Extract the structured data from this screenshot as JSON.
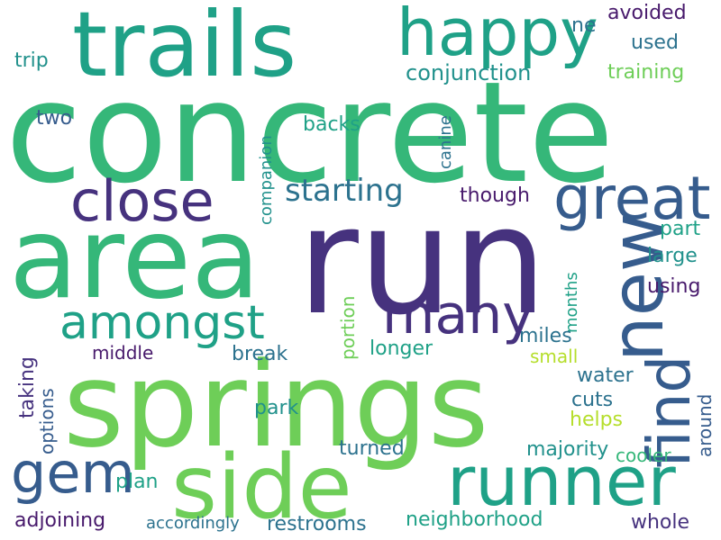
{
  "palette": {
    "indigo": "#46327e",
    "dark_purple": "#481a6c",
    "blue": "#365c8d",
    "steel": "#2c728e",
    "teal": "#21918c",
    "sea": "#1fa187",
    "green": "#35b779",
    "light_green": "#6ece58",
    "lime": "#b5de2b"
  },
  "words": [
    {
      "text": "concrete",
      "color": "green"
    },
    {
      "text": "run",
      "color": "indigo"
    },
    {
      "text": "springs",
      "color": "light_green"
    },
    {
      "text": "trails",
      "color": "sea"
    },
    {
      "text": "area",
      "color": "green"
    },
    {
      "text": "side",
      "color": "light_green"
    },
    {
      "text": "happy",
      "color": "sea"
    },
    {
      "text": "new",
      "color": "blue"
    },
    {
      "text": "runner",
      "color": "sea"
    },
    {
      "text": "close",
      "color": "indigo"
    },
    {
      "text": "great",
      "color": "blue"
    },
    {
      "text": "many",
      "color": "indigo"
    },
    {
      "text": "amongst",
      "color": "sea"
    },
    {
      "text": "find",
      "color": "blue"
    },
    {
      "text": "gem",
      "color": "blue"
    },
    {
      "text": "starting",
      "color": "steel"
    },
    {
      "text": "conjunction",
      "color": "teal"
    },
    {
      "text": "avoided",
      "color": "dark_purple"
    },
    {
      "text": "used",
      "color": "steel"
    },
    {
      "text": "ne",
      "color": "steel"
    },
    {
      "text": "trip",
      "color": "teal"
    },
    {
      "text": "two",
      "color": "blue"
    },
    {
      "text": "training",
      "color": "light_green"
    },
    {
      "text": "backs",
      "color": "sea"
    },
    {
      "text": "canine",
      "color": "steel"
    },
    {
      "text": "though",
      "color": "dark_purple"
    },
    {
      "text": "companion",
      "color": "teal"
    },
    {
      "text": "part",
      "color": "sea"
    },
    {
      "text": "large",
      "color": "teal"
    },
    {
      "text": "using",
      "color": "dark_purple"
    },
    {
      "text": "months",
      "color": "sea"
    },
    {
      "text": "portion",
      "color": "light_green"
    },
    {
      "text": "miles",
      "color": "steel"
    },
    {
      "text": "small",
      "color": "lime"
    },
    {
      "text": "middle",
      "color": "dark_purple"
    },
    {
      "text": "break",
      "color": "steel"
    },
    {
      "text": "longer",
      "color": "sea"
    },
    {
      "text": "taking",
      "color": "indigo"
    },
    {
      "text": "options",
      "color": "blue"
    },
    {
      "text": "water",
      "color": "steel"
    },
    {
      "text": "around",
      "color": "blue"
    },
    {
      "text": "cuts",
      "color": "steel"
    },
    {
      "text": "park",
      "color": "teal"
    },
    {
      "text": "helps",
      "color": "lime"
    },
    {
      "text": "turned",
      "color": "steel"
    },
    {
      "text": "majority",
      "color": "teal"
    },
    {
      "text": "cooler",
      "color": "green"
    },
    {
      "text": "plan",
      "color": "sea"
    },
    {
      "text": "adjoining",
      "color": "dark_purple"
    },
    {
      "text": "accordingly",
      "color": "steel"
    },
    {
      "text": "restrooms",
      "color": "steel"
    },
    {
      "text": "neighborhood",
      "color": "sea"
    },
    {
      "text": "whole",
      "color": "indigo"
    }
  ]
}
